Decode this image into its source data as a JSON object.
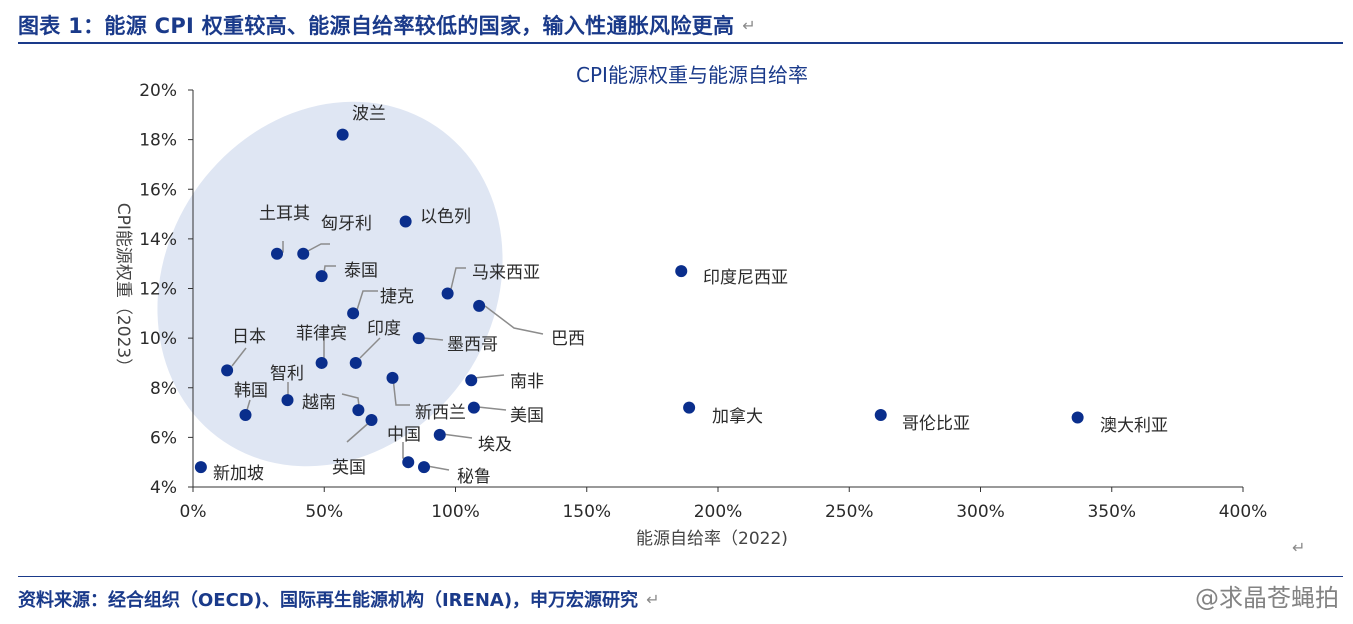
{
  "header": {
    "title": "图表 1：能源 CPI 权重较高、能源自给率较低的国家，输入性通胀风险更高",
    "return_mark": "↵"
  },
  "footer": {
    "source": "资料来源：经合组织（OECD)、国际再生能源机构（IRENA)，申万宏源研究",
    "return_mark": "↵"
  },
  "watermark": "@求晶苍蝇拍",
  "mid_return_mark": "↵",
  "colors": {
    "accent": "#1a3a8a",
    "point": "#0a2e8c",
    "ellipse": "#dfe6f3",
    "leader": "#8c8c8c"
  },
  "chart_data": {
    "type": "scatter",
    "title": "CPI能源权重与能源自给率",
    "xlabel": "能源自给率（2022)",
    "ylabel": "CPI能源权重（2023）",
    "xlim": [
      0,
      400
    ],
    "ylim": [
      4,
      20
    ],
    "x_ticks": [
      "0%",
      "50%",
      "100%",
      "150%",
      "200%",
      "250%",
      "300%",
      "350%",
      "400%"
    ],
    "y_ticks": [
      "4%",
      "6%",
      "8%",
      "10%",
      "12%",
      "14%",
      "16%",
      "18%",
      "20%"
    ],
    "grid": false,
    "highlight": "ellipse around low-self-sufficiency, high-weight countries",
    "points": [
      {
        "name": "波兰",
        "x": 57,
        "y": 18.2
      },
      {
        "name": "以色列",
        "x": 81,
        "y": 14.7
      },
      {
        "name": "土耳其",
        "x": 32,
        "y": 13.4
      },
      {
        "name": "匈牙利",
        "x": 42,
        "y": 13.4
      },
      {
        "name": "泰国",
        "x": 49,
        "y": 12.5
      },
      {
        "name": "马来西亚",
        "x": 97,
        "y": 11.8
      },
      {
        "name": "印度尼西亚",
        "x": 186,
        "y": 12.7
      },
      {
        "name": "捷克",
        "x": 61,
        "y": 11.0
      },
      {
        "name": "巴西",
        "x": 109,
        "y": 11.3
      },
      {
        "name": "印度",
        "x": 62,
        "y": 9.0
      },
      {
        "name": "菲律宾",
        "x": 49,
        "y": 9.0
      },
      {
        "name": "墨西哥",
        "x": 86,
        "y": 10.0
      },
      {
        "name": "日本",
        "x": 13,
        "y": 8.7
      },
      {
        "name": "智利",
        "x": 36,
        "y": 7.5
      },
      {
        "name": "韩国",
        "x": 20,
        "y": 6.9
      },
      {
        "name": "越南",
        "x": 63,
        "y": 7.1
      },
      {
        "name": "英国",
        "x": 68,
        "y": 6.7
      },
      {
        "name": "新西兰",
        "x": 76,
        "y": 8.4
      },
      {
        "name": "南非",
        "x": 106,
        "y": 8.3
      },
      {
        "name": "美国",
        "x": 107,
        "y": 7.2
      },
      {
        "name": "加拿大",
        "x": 189,
        "y": 7.2
      },
      {
        "name": "哥伦比亚",
        "x": 262,
        "y": 6.9
      },
      {
        "name": "澳大利亚",
        "x": 337,
        "y": 6.8
      },
      {
        "name": "中国",
        "x": 82,
        "y": 5.0
      },
      {
        "name": "埃及",
        "x": 94,
        "y": 6.1
      },
      {
        "name": "秘鲁",
        "x": 88,
        "y": 4.8
      },
      {
        "name": "新加坡",
        "x": 3,
        "y": 4.8
      }
    ]
  }
}
